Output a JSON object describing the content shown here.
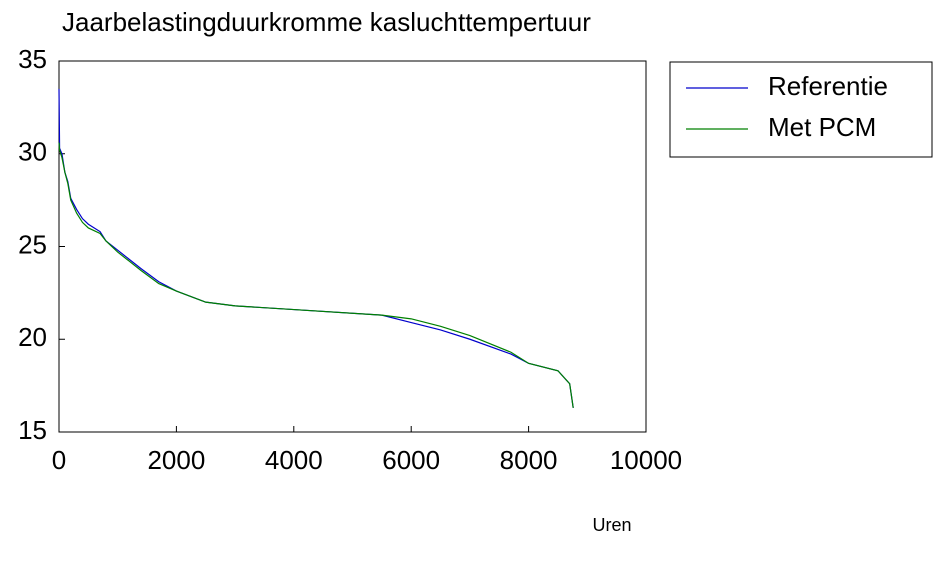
{
  "chart_data": {
    "type": "line",
    "title": "Jaarbelastingduurkromme kasluchttempertuur",
    "x_label": "Uren",
    "x": [
      0,
      10,
      50,
      100,
      150,
      200,
      300,
      400,
      500,
      700,
      800,
      1000,
      1200,
      1400,
      1700,
      2000,
      2500,
      3000,
      4000,
      5500,
      6000,
      6500,
      7000,
      7700,
      8000,
      8500,
      8700,
      8760
    ],
    "series": [
      {
        "name": "Referentie",
        "color": "#0000cc",
        "values": [
          33.5,
          30.3,
          30,
          29,
          28.5,
          27.6,
          27,
          26.5,
          26.2,
          25.8,
          25.3,
          24.8,
          24.3,
          23.8,
          23.1,
          22.6,
          22.0,
          21.8,
          21.6,
          21.3,
          20.9,
          20.5,
          20.0,
          19.2,
          18.7,
          18.3,
          17.6,
          16.3
        ]
      },
      {
        "name": "Met PCM",
        "color": "#008000",
        "values": [
          30.6,
          30.2,
          29.8,
          29,
          28.4,
          27.5,
          26.8,
          26.3,
          26.0,
          25.7,
          25.3,
          24.7,
          24.2,
          23.7,
          23.0,
          22.6,
          22.0,
          21.8,
          21.6,
          21.3,
          21.1,
          20.7,
          20.2,
          19.3,
          18.7,
          18.3,
          17.6,
          16.3
        ]
      }
    ],
    "xlim": [
      0,
      10000
    ],
    "xticks": [
      0,
      2000,
      4000,
      6000,
      8000,
      10000
    ],
    "ylim": [
      15,
      35
    ],
    "yticks": [
      15,
      20,
      25,
      30,
      35
    ],
    "legend": "outside-right"
  }
}
